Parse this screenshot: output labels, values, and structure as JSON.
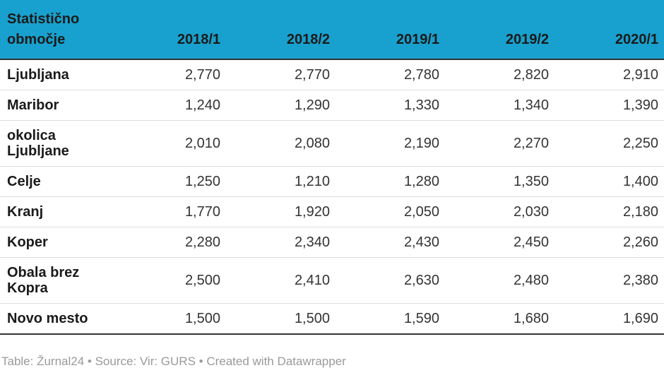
{
  "chart_data": {
    "type": "table",
    "title": "",
    "columns": [
      "Statistično območje",
      "2018/1",
      "2018/2",
      "2019/1",
      "2019/2",
      "2020/1"
    ],
    "rows": [
      {
        "label": "Ljubljana",
        "values": [
          "2,770",
          "2,770",
          "2,780",
          "2,820",
          "2,910"
        ]
      },
      {
        "label": "Maribor",
        "values": [
          "1,240",
          "1,290",
          "1,330",
          "1,340",
          "1,390"
        ]
      },
      {
        "label": "okolica Ljubljane",
        "values": [
          "2,010",
          "2,080",
          "2,190",
          "2,270",
          "2,250"
        ]
      },
      {
        "label": "Celje",
        "values": [
          "1,250",
          "1,210",
          "1,280",
          "1,350",
          "1,400"
        ]
      },
      {
        "label": "Kranj",
        "values": [
          "1,770",
          "1,920",
          "2,050",
          "2,030",
          "2,180"
        ]
      },
      {
        "label": "Koper",
        "values": [
          "2,280",
          "2,340",
          "2,430",
          "2,450",
          "2,260"
        ]
      },
      {
        "label": "Obala brez Kopra",
        "values": [
          "2,500",
          "2,410",
          "2,630",
          "2,480",
          "2,380"
        ]
      },
      {
        "label": "Novo mesto",
        "values": [
          "1,500",
          "1,500",
          "1,590",
          "1,680",
          "1,690"
        ]
      }
    ],
    "footer": "Table: Žurnal24 • Source: Vir: GURS • Created with Datawrapper",
    "layout": {
      "legend": "none",
      "grid": "horizontal-row-separators"
    }
  },
  "colors": {
    "header_bg": "#18a1ce",
    "header_text": "#1a1a1a",
    "row_label_text": "#1a1a1a",
    "cell_text": "#333333",
    "row_separator": "#dddddd",
    "rule_dark": "#333333",
    "footer_text": "#9a9a9a",
    "background": "#ffffff"
  }
}
